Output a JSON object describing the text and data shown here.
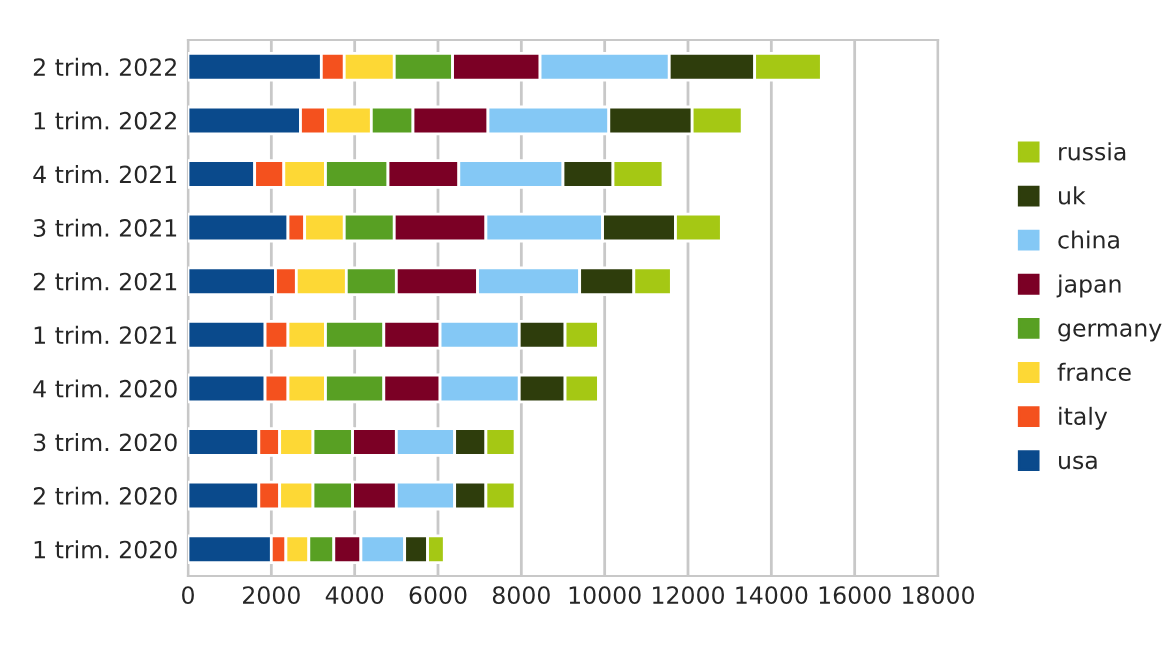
{
  "chart_data": {
    "type": "bar",
    "orientation": "horizontal",
    "stacked": true,
    "categories": [
      "2 trim. 2022",
      "1 trim. 2022",
      "4 trim. 2021",
      "3 trim. 2021",
      "2 trim. 2021",
      "1 trim. 2021",
      "4 trim. 2020",
      "3 trim. 2020",
      "2 trim. 2020",
      "1 trim. 2020"
    ],
    "series": [
      {
        "name": "usa",
        "color": "#0a4a8c",
        "values": [
          3200,
          2700,
          1600,
          2400,
          2100,
          1850,
          1850,
          1700,
          1700,
          2000
        ]
      },
      {
        "name": "italy",
        "color": "#f4511e",
        "values": [
          550,
          600,
          700,
          400,
          500,
          550,
          550,
          500,
          500,
          350
        ]
      },
      {
        "name": "france",
        "color": "#fdd835",
        "values": [
          1200,
          1100,
          1000,
          950,
          1200,
          900,
          900,
          800,
          800,
          550
        ]
      },
      {
        "name": "germany",
        "color": "#58a023",
        "values": [
          1400,
          1000,
          1500,
          1200,
          1200,
          1400,
          1400,
          950,
          950,
          600
        ]
      },
      {
        "name": "japan",
        "color": "#7b0025",
        "values": [
          2100,
          1800,
          1700,
          2200,
          1950,
          1350,
          1350,
          1050,
          1050,
          650
        ]
      },
      {
        "name": "china",
        "color": "#84c8f5",
        "values": [
          3100,
          2900,
          2500,
          2800,
          2450,
          1900,
          1900,
          1400,
          1400,
          1050
        ]
      },
      {
        "name": "uk",
        "color": "#2e3d0c",
        "values": [
          2050,
          2000,
          1200,
          1750,
          1300,
          1100,
          1100,
          750,
          750,
          550
        ]
      },
      {
        "name": "russia",
        "color": "#a5c814",
        "values": [
          1600,
          1200,
          1200,
          1100,
          900,
          800,
          800,
          700,
          700,
          400
        ]
      }
    ],
    "xlim": [
      0,
      18000
    ],
    "xticks": [
      0,
      2000,
      4000,
      6000,
      8000,
      10000,
      12000,
      14000,
      16000,
      18000
    ],
    "grid": "x",
    "legend": "right"
  }
}
